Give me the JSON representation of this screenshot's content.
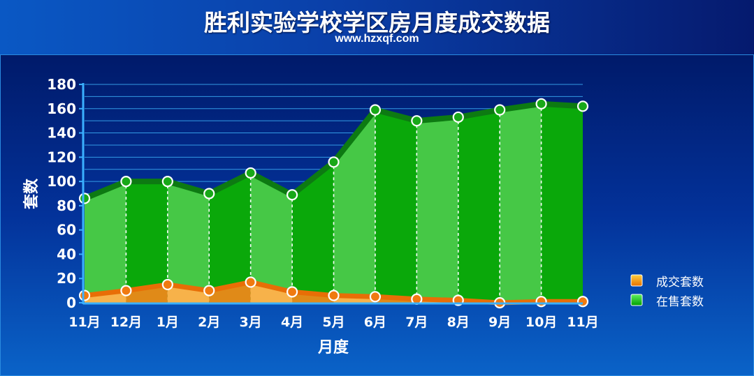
{
  "header": {
    "title": "胜利实验学校学区房月度成交数据",
    "subtitle": "www.hzxqf.com"
  },
  "chart_data": {
    "type": "area",
    "title": "胜利实验学校学区房月度成交数据",
    "subtitle": "www.hzxqf.com",
    "xlabel": "月度",
    "ylabel": "套数",
    "categories": [
      "11月",
      "12月",
      "1月",
      "2月",
      "3月",
      "4月",
      "5月",
      "6月",
      "7月",
      "8月",
      "9月",
      "10月",
      "11月"
    ],
    "yticks": [
      "0",
      "20",
      "40",
      "60",
      "80",
      "100",
      "120",
      "140",
      "160",
      "180"
    ],
    "ylim": [
      0,
      180
    ],
    "grid": true,
    "legend_position": "right",
    "series": [
      {
        "name": "成交套数",
        "color": "#f08a10",
        "values": [
          6,
          10,
          15,
          10,
          17,
          9,
          6,
          5,
          3,
          2,
          0,
          1,
          1
        ]
      },
      {
        "name": "在售套数",
        "color": "#12c412",
        "values": [
          86,
          100,
          100,
          90,
          107,
          89,
          116,
          159,
          150,
          153,
          159,
          164,
          162
        ]
      }
    ]
  }
}
